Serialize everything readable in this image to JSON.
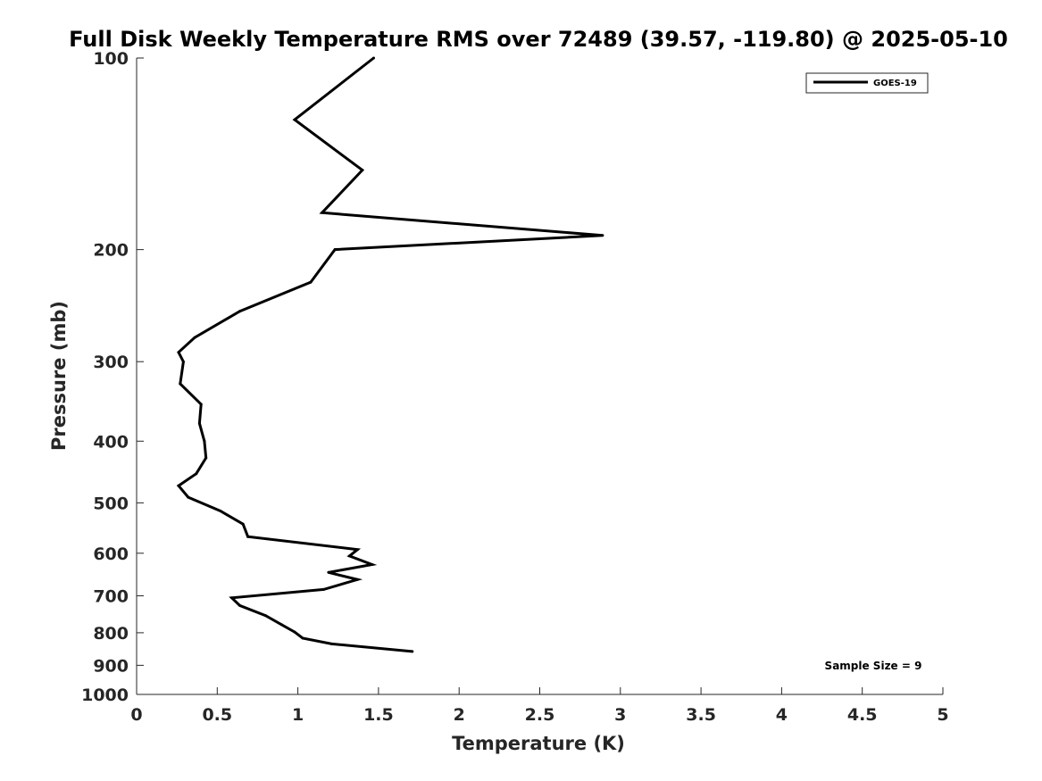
{
  "chart_data": {
    "type": "line",
    "title": "Full Disk Weekly Temperature RMS over 72489 (39.57, -119.80) @ 2025-05-10",
    "xlabel": "Temperature (K)",
    "ylabel": "Pressure (mb)",
    "xlim": [
      0,
      5
    ],
    "ylim": [
      100,
      1000
    ],
    "y_scale": "log",
    "y_reversed": true,
    "grid": false,
    "legend_position": "top-right",
    "x_ticks": [
      0,
      0.5,
      1,
      1.5,
      2,
      2.5,
      3,
      3.5,
      4,
      4.5,
      5
    ],
    "x_tick_labels": [
      "0",
      "0.5",
      "1",
      "1.5",
      "2",
      "2.5",
      "3",
      "3.5",
      "4",
      "4.5",
      "5"
    ],
    "y_ticks": [
      100,
      200,
      300,
      400,
      500,
      600,
      700,
      800,
      900,
      1000
    ],
    "y_tick_labels": [
      "100",
      "200",
      "300",
      "400",
      "500",
      "600",
      "700",
      "800",
      "900",
      "1000"
    ],
    "series": [
      {
        "name": "GOES-19",
        "color": "#000000",
        "points": [
          {
            "t": 1.47,
            "p": 100
          },
          {
            "t": 0.98,
            "p": 125
          },
          {
            "t": 1.4,
            "p": 150
          },
          {
            "t": 1.15,
            "p": 175
          },
          {
            "t": 2.89,
            "p": 190
          },
          {
            "t": 1.23,
            "p": 200
          },
          {
            "t": 1.08,
            "p": 225
          },
          {
            "t": 0.64,
            "p": 250
          },
          {
            "t": 0.36,
            "p": 275
          },
          {
            "t": 0.26,
            "p": 290
          },
          {
            "t": 0.29,
            "p": 300
          },
          {
            "t": 0.27,
            "p": 325
          },
          {
            "t": 0.4,
            "p": 350
          },
          {
            "t": 0.39,
            "p": 375
          },
          {
            "t": 0.42,
            "p": 400
          },
          {
            "t": 0.43,
            "p": 425
          },
          {
            "t": 0.37,
            "p": 450
          },
          {
            "t": 0.26,
            "p": 470
          },
          {
            "t": 0.32,
            "p": 490
          },
          {
            "t": 0.52,
            "p": 515
          },
          {
            "t": 0.66,
            "p": 540
          },
          {
            "t": 0.69,
            "p": 565
          },
          {
            "t": 1.37,
            "p": 592
          },
          {
            "t": 1.32,
            "p": 606
          },
          {
            "t": 1.46,
            "p": 625
          },
          {
            "t": 1.19,
            "p": 643
          },
          {
            "t": 1.37,
            "p": 660
          },
          {
            "t": 1.16,
            "p": 684
          },
          {
            "t": 0.59,
            "p": 705
          },
          {
            "t": 0.64,
            "p": 725
          },
          {
            "t": 0.8,
            "p": 752
          },
          {
            "t": 0.9,
            "p": 777
          },
          {
            "t": 0.98,
            "p": 798
          },
          {
            "t": 1.03,
            "p": 816
          },
          {
            "t": 1.21,
            "p": 833
          },
          {
            "t": 1.71,
            "p": 856
          }
        ]
      }
    ],
    "annotation": "Sample Size = 9"
  }
}
